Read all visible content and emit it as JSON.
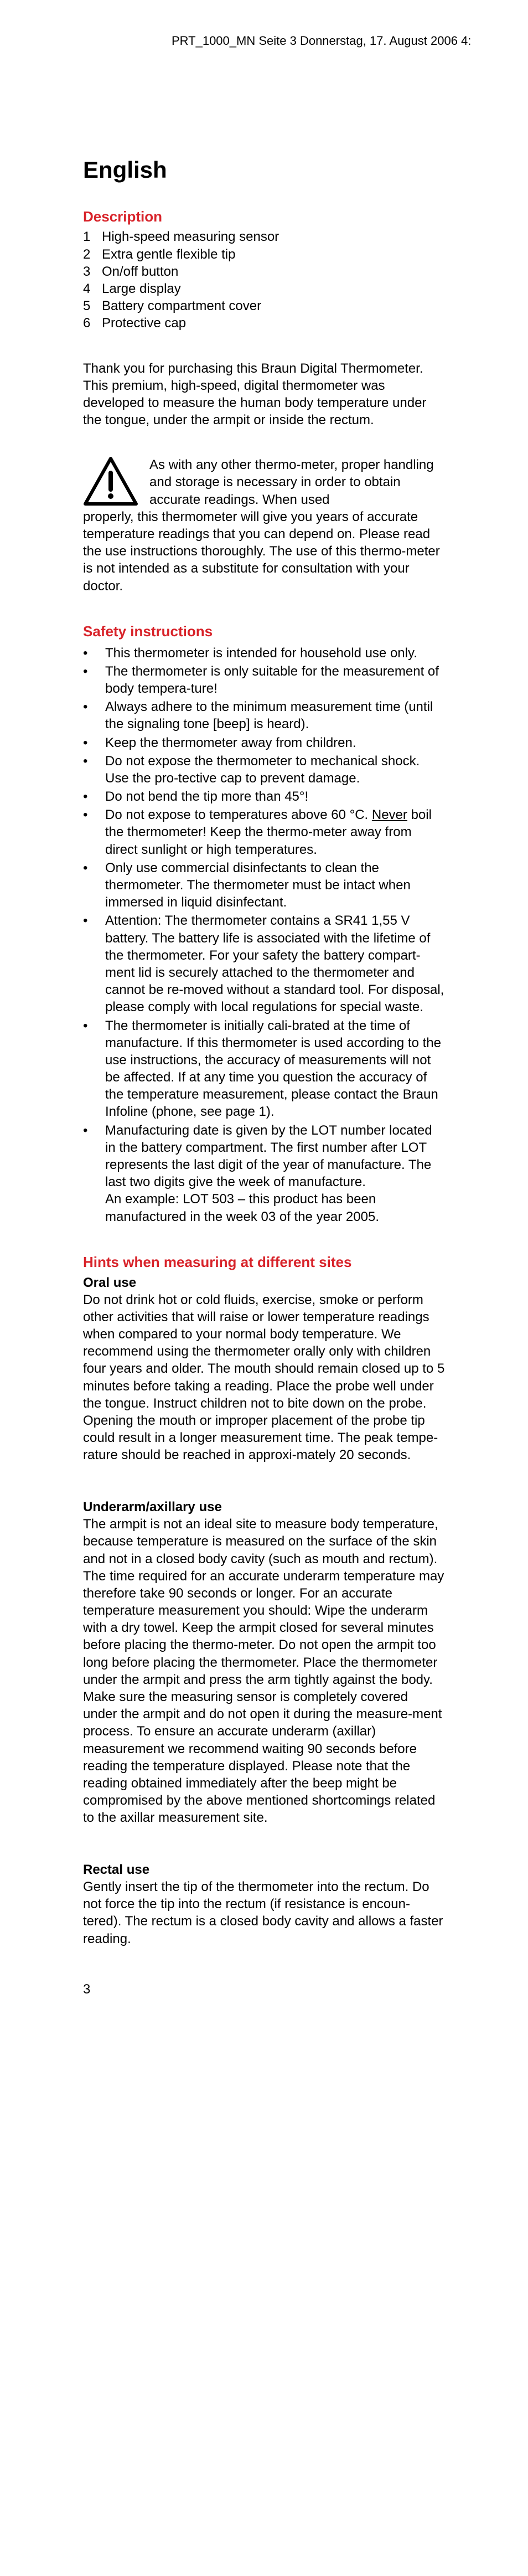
{
  "header": {
    "crop_text": "PRT_1000_MN  Seite 3  Donnerstag, 17. August 2006  4:"
  },
  "title": "English",
  "description": {
    "heading": "Description",
    "items": [
      "High-speed measuring sensor",
      "Extra gentle flexible tip",
      "On/off button",
      "Large display",
      "Battery compartment cover",
      "Protective cap"
    ]
  },
  "intro": "Thank you for purchasing this Braun Digital Thermometer. This premium, high-speed, digital thermometer was developed to measure the human body temperature under the tongue, under the armpit or inside the rectum.",
  "warning_lead": "As with any other thermo-meter, proper handling and storage is necessary in order to obtain accurate readings. When used",
  "warning_cont": "properly, this thermometer will give you years of  accurate temperature readings that you can depend on. Please read the use instructions thoroughly. The use of this thermo-meter is not intended as a substitute for consultation with your doctor.",
  "safety": {
    "heading": "Safety instructions",
    "items": [
      "This thermometer is intended for household use only.",
      "The thermometer is only suitable for the measurement of body tempera-ture!",
      "Always adhere to the minimum measurement time (until the signaling tone [beep] is heard).",
      "Keep the thermometer away from children.",
      "Do not expose the thermometer to mechanical shock. Use the pro-tective cap to prevent damage.",
      "Do not bend the tip more than 45°!",
      "Do not expose to temperatures above 60 °C. <span class=\"u\">Never</span> boil the thermometer! Keep the thermo-meter away from direct sunlight or high temperatures.",
      "Only use commercial disinfectants to clean the thermometer. The thermometer must be intact when immersed in liquid disinfectant.",
      "Attention: The thermometer contains a SR41 1,55 V battery. The battery life is associated with the lifetime of the thermometer. For your safety the battery compart-ment lid is securely attached to the thermometer and cannot be re-moved without a standard tool. For disposal, please comply with local regulations for special waste.",
      "The thermometer is initially cali-brated at the time of manufacture. If this thermometer is used according to the use instructions, the accuracy of measurements will not be affected. If at any time you question the accuracy of the temperature measurement, please contact the Braun Infoline (phone, see page 1).",
      "Manufacturing date is given by the LOT number located in the battery compartment. The first number after LOT represents the last digit of the year of manufacture. The last two digits give the week of manufacture.<br>An example: LOT 503 – this product has been manufactured in the week 03 of the year 2005."
    ]
  },
  "hints": {
    "heading": "Hints when measuring at different sites",
    "oral_heading": "Oral use",
    "oral_body": "Do not drink hot or cold fluids, exercise, smoke or perform other activities that will raise or lower temperature readings when compared to your normal body temperature. We recommend using the thermometer orally only with children four years and older. The mouth should remain closed up to 5 minutes before taking a reading. Place the probe well under the tongue. Instruct children not to bite down on the probe. Opening the mouth or improper placement of the probe tip could result in a longer measurement time. The peak tempe-rature should be reached in approxi-mately 20 seconds.",
    "underarm_heading": "Underarm/axillary use",
    "underarm_body": "The armpit is not  an ideal site to measure body temperature, because temperature is measured on the surface of the skin and not in a closed body cavity (such as mouth and rectum). The time required for an accurate underarm temperature may therefore take 90 seconds or longer. For an accurate temperature measurement you should: Wipe the underarm with a dry towel. Keep the armpit closed for several minutes before placing the thermo-meter. Do not open the armpit too long before placing the thermometer. Place the thermometer under the armpit and press the arm tightly against the body. Make sure the measuring sensor is completely covered under the armpit and do not open it during the measure-ment process. To ensure an accurate underarm (axillar) measurement we recommend waiting 90 seconds before reading  the temperature displayed. Please note that the reading obtained immediately after the beep might be compromised by the above mentioned shortcomings related to the axillar measurement site.",
    "rectal_heading": "Rectal use",
    "rectal_body": "Gently insert the tip of the thermometer into the rectum. Do not force the tip into the rectum (if resistance is encoun-tered). The rectum is a closed body cavity and allows a faster reading."
  },
  "page_number": "3"
}
